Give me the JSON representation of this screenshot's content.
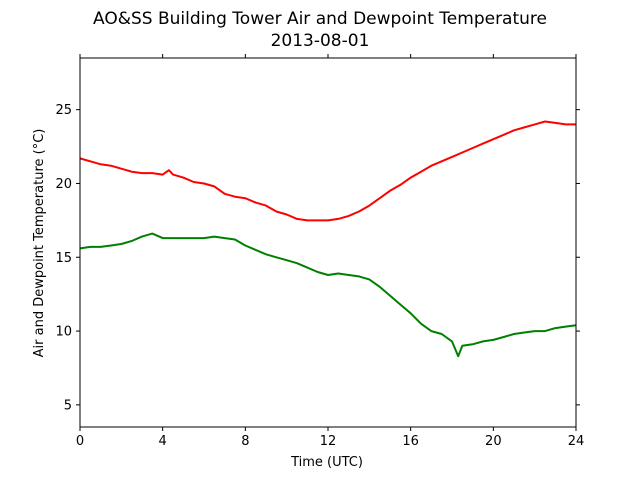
{
  "chart_data": {
    "type": "line",
    "title": "AO&SS Building Tower Air and Dewpoint Temperature",
    "subtitle": "2013-08-01",
    "xlabel": "Time (UTC)",
    "ylabel": "Air and Dewpoint Temperature (°C)",
    "xlim": [
      0,
      24
    ],
    "ylim": [
      3.5,
      28.5
    ],
    "xticks": [
      0,
      4,
      8,
      12,
      16,
      20,
      24
    ],
    "yticks": [
      5,
      10,
      15,
      20,
      25
    ],
    "grid": false,
    "legend": "none",
    "series": [
      {
        "color": "#ff0000",
        "x": [
          0,
          0.5,
          1,
          1.5,
          2,
          2.5,
          3,
          3.5,
          4,
          4.3,
          4.5,
          5,
          5.5,
          6,
          6.5,
          7,
          7.5,
          8,
          8.5,
          9,
          9.5,
          10,
          10.5,
          11,
          11.5,
          12,
          12.5,
          13,
          13.5,
          14,
          14.5,
          15,
          15.5,
          16,
          16.5,
          17,
          17.5,
          18,
          18.5,
          19,
          19.5,
          20,
          20.5,
          21,
          21.5,
          22,
          22.5,
          23,
          23.5,
          24
        ],
        "y": [
          21.7,
          21.5,
          21.3,
          21.2,
          21.0,
          20.8,
          20.7,
          20.7,
          20.6,
          20.9,
          20.6,
          20.4,
          20.1,
          20.0,
          19.8,
          19.3,
          19.1,
          19.0,
          18.7,
          18.5,
          18.1,
          17.9,
          17.6,
          17.5,
          17.5,
          17.5,
          17.6,
          17.8,
          18.1,
          18.5,
          19.0,
          19.5,
          19.9,
          20.4,
          20.8,
          21.2,
          21.5,
          21.8,
          22.1,
          22.4,
          22.7,
          23.0,
          23.3,
          23.6,
          23.8,
          24.0,
          24.2,
          24.1,
          24.0,
          24.0
        ]
      },
      {
        "color": "#008000",
        "x": [
          0,
          0.5,
          1,
          1.5,
          2,
          2.5,
          3,
          3.5,
          4,
          4.5,
          5,
          5.5,
          6,
          6.5,
          7,
          7.5,
          8,
          8.5,
          9,
          9.5,
          10,
          10.5,
          11,
          11.5,
          12,
          12.5,
          13,
          13.5,
          14,
          14.5,
          15,
          15.5,
          16,
          16.5,
          17,
          17.5,
          18,
          18.3,
          18.5,
          19,
          19.5,
          20,
          20.5,
          21,
          21.5,
          22,
          22.5,
          23,
          23.5,
          24
        ],
        "y": [
          15.6,
          15.7,
          15.7,
          15.8,
          15.9,
          16.1,
          16.4,
          16.6,
          16.3,
          16.3,
          16.3,
          16.3,
          16.3,
          16.4,
          16.3,
          16.2,
          15.8,
          15.5,
          15.2,
          15.0,
          14.8,
          14.6,
          14.3,
          14.0,
          13.8,
          13.9,
          13.8,
          13.7,
          13.5,
          13.0,
          12.4,
          11.8,
          11.2,
          10.5,
          10.0,
          9.8,
          9.3,
          8.3,
          9.0,
          9.1,
          9.3,
          9.4,
          9.6,
          9.8,
          9.9,
          10.0,
          10.0,
          10.2,
          10.3,
          10.4
        ]
      }
    ]
  }
}
